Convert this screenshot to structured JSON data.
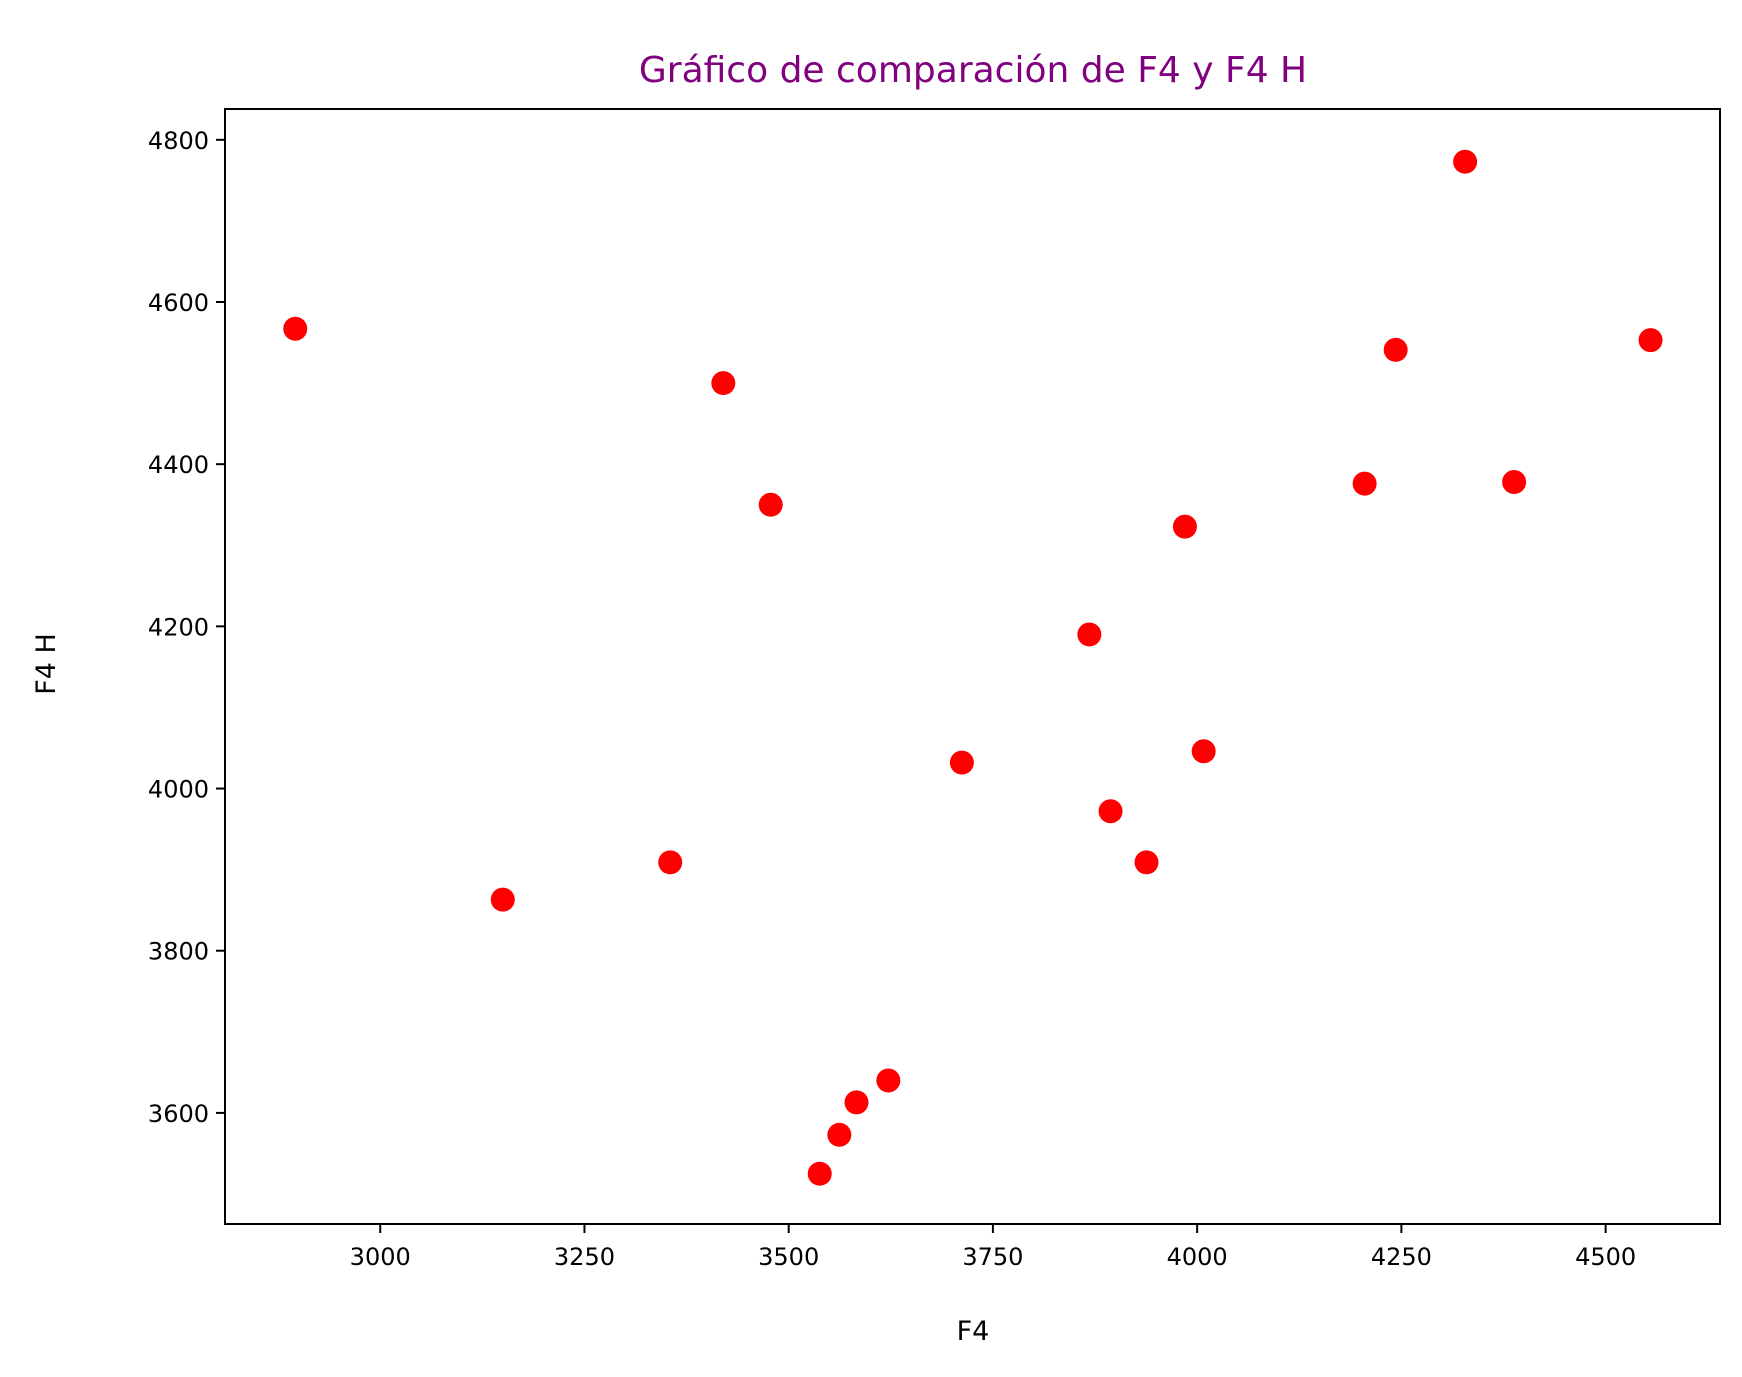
{
  "chart_data": {
    "type": "scatter",
    "title": "Gráfico de comparación de F4 y F4 H",
    "xlabel": "F4",
    "ylabel": "F4 H",
    "xlim": [
      2810,
      4640
    ],
    "ylim": [
      3463,
      4838
    ],
    "xticks": [
      3000,
      3250,
      3500,
      3750,
      4000,
      4250,
      4500
    ],
    "yticks": [
      3600,
      3800,
      4000,
      4200,
      4400,
      4600,
      4800
    ],
    "grid": false,
    "legend": "none",
    "colors": {
      "marker": "#ff0000",
      "title": "#800080",
      "axis": "#000000"
    },
    "series": [
      {
        "points": [
          [
            2896,
            4567
          ],
          [
            3150,
            3863
          ],
          [
            3355,
            3909
          ],
          [
            3420,
            4500
          ],
          [
            3478,
            4350
          ],
          [
            3538,
            3525
          ],
          [
            3562,
            3573
          ],
          [
            3583,
            3613
          ],
          [
            3622,
            3640
          ],
          [
            3712,
            4032
          ],
          [
            3868,
            4190
          ],
          [
            3894,
            3972
          ],
          [
            3938,
            3909
          ],
          [
            3985,
            4323
          ],
          [
            4008,
            4046
          ],
          [
            4205,
            4376
          ],
          [
            4243,
            4541
          ],
          [
            4328,
            4773
          ],
          [
            4388,
            4378
          ],
          [
            4555,
            4553
          ]
        ]
      }
    ]
  }
}
